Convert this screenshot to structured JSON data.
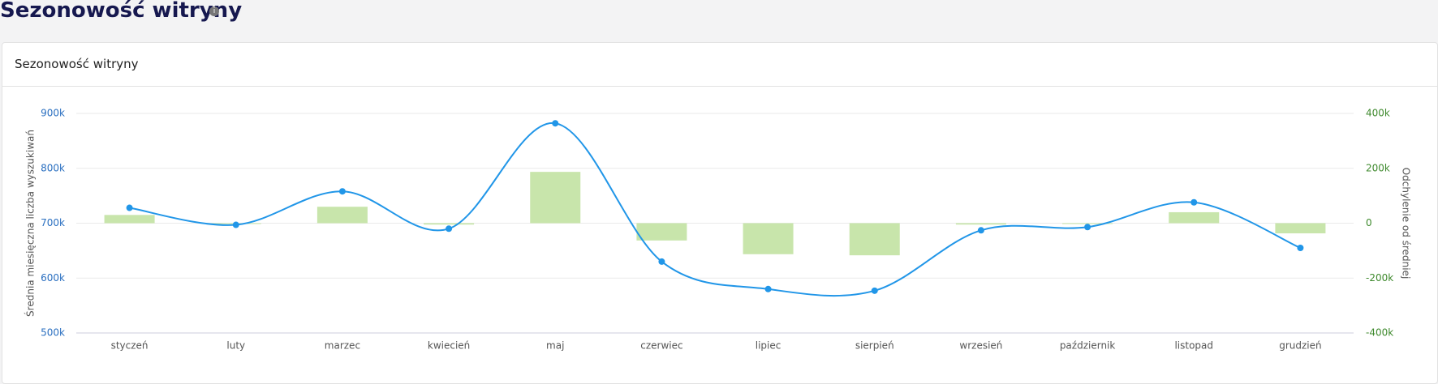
{
  "header": {
    "title": "Sezonowość witryny"
  },
  "card": {
    "title": "Sezonowość witryny"
  },
  "chart_data": {
    "type": "line-bar",
    "y_label": "Średnia miesięczna liczba wyszukiwań",
    "y2_label": "Odchylenie od średniej",
    "categories": [
      "styczeń",
      "luty",
      "marzec",
      "kwiecień",
      "maj",
      "czerwiec",
      "lipiec",
      "sierpień",
      "wrzesień",
      "październik",
      "listopad",
      "grudzień"
    ],
    "series": [
      {
        "name": "Średnia miesięczna liczba wyszukiwań",
        "color": "#2196e8",
        "kind": "line",
        "values": [
          728000,
          697000,
          758000,
          690000,
          882000,
          630000,
          580000,
          577000,
          687000,
          693000,
          738000,
          655000
        ]
      },
      {
        "name": "Odchylenie od średniej",
        "color": "#c8e5ab",
        "kind": "bar",
        "axis": "y2",
        "values": [
          30000,
          0,
          60000,
          -5000,
          187000,
          -63000,
          -113000,
          -117000,
          -5000,
          0,
          40000,
          -37000
        ]
      }
    ],
    "ylim": [
      500000,
      900000
    ],
    "yticks": [
      {
        "value": 500000,
        "label": "500k"
      },
      {
        "value": 600000,
        "label": "600k"
      },
      {
        "value": 700000,
        "label": "700k"
      },
      {
        "value": 800000,
        "label": "800k"
      },
      {
        "value": 900000,
        "label": "900k"
      }
    ],
    "y2lim": [
      -400000,
      400000
    ],
    "y2ticks": [
      {
        "value": -400000,
        "label": "-400k"
      },
      {
        "value": -200000,
        "label": "-200k"
      },
      0,
      {
        "value": 200000,
        "label": "200k"
      },
      {
        "value": 400000,
        "label": "400k"
      }
    ],
    "grid": true
  }
}
